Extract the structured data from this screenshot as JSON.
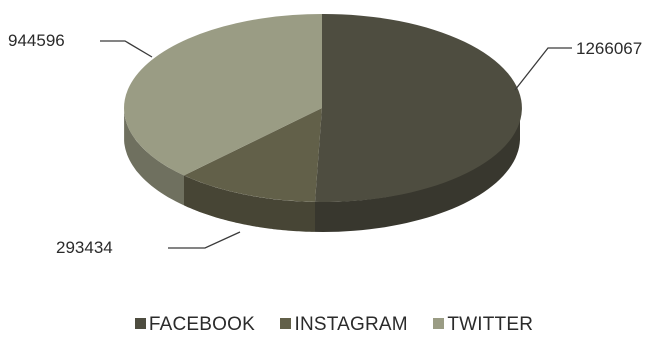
{
  "chart_data": {
    "type": "pie",
    "title": "",
    "categories": [
      "FACEBOOK",
      "INSTAGRAM",
      "TWITTER"
    ],
    "values": [
      1266067,
      293434,
      944596
    ],
    "value_labels": [
      "1266067",
      "293434",
      "944596"
    ],
    "colors": [
      "#4e4d40",
      "#626049",
      "#9a9c84"
    ],
    "legend_placement": "bottom",
    "three_d": true
  }
}
